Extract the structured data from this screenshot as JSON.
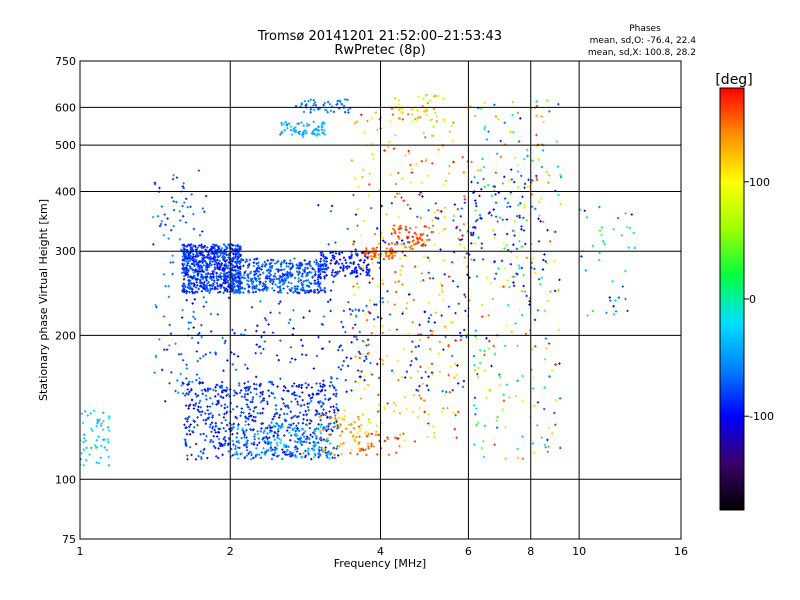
{
  "chart_data": {
    "type": "scatter",
    "title": "Tromsø 20141201 21:52:00–21:53:43",
    "subtitle": "RwPretec (8p)",
    "xlabel": "Frequency [MHz]",
    "ylabel": "Stationary phase Virtual Height [km]",
    "x_scale": "log",
    "y_scale": "log",
    "xlim": [
      1,
      16
    ],
    "ylim": [
      75,
      750
    ],
    "x_ticks": [
      1,
      2,
      4,
      6,
      8,
      10,
      16
    ],
    "y_ticks": [
      75,
      100,
      200,
      300,
      400,
      500,
      600,
      750
    ],
    "grid": true,
    "stats": {
      "heading": "Phases",
      "o_line": "mean, sd,O: -76.4, 22.4",
      "x_line": "mean, sd,X: 100.8, 28.2"
    },
    "colorbar": {
      "label": "[deg]",
      "range": [
        -180,
        180
      ],
      "ticks": [
        100,
        0,
        -100
      ],
      "colors": [
        "#000000",
        "#3a006a",
        "#0000ff",
        "#0080ff",
        "#00e0ff",
        "#00ff40",
        "#a0ff00",
        "#ffff00",
        "#ff9000",
        "#ff0000"
      ]
    },
    "clusters": [
      {
        "f": [
          1.6,
          2.1
        ],
        "h": [
          245,
          310
        ],
        "phase": [
          -110,
          -60
        ],
        "count": 700
      },
      {
        "f": [
          2.0,
          3.1
        ],
        "h": [
          245,
          290
        ],
        "phase": [
          -100,
          -50
        ],
        "count": 450
      },
      {
        "f": [
          3.0,
          3.8
        ],
        "h": [
          265,
          300
        ],
        "phase": [
          -110,
          -80
        ],
        "count": 130
      },
      {
        "f": [
          3.7,
          4.3
        ],
        "h": [
          288,
          305
        ],
        "phase": [
          130,
          180
        ],
        "count": 60
      },
      {
        "f": [
          4.2,
          5.1
        ],
        "h": [
          305,
          340
        ],
        "phase": [
          140,
          180
        ],
        "count": 60
      },
      {
        "f": [
          1.6,
          3.3
        ],
        "h": [
          110,
          160
        ],
        "phase": [
          -110,
          -60
        ],
        "count": 650
      },
      {
        "f": [
          2.0,
          3.2
        ],
        "h": [
          110,
          130
        ],
        "phase": [
          -70,
          -20
        ],
        "count": 150
      },
      {
        "f": [
          3.0,
          3.8
        ],
        "h": [
          112,
          140
        ],
        "phase": [
          100,
          160
        ],
        "count": 70
      },
      {
        "f": [
          3.5,
          4.5
        ],
        "h": [
          112,
          125
        ],
        "phase": [
          140,
          180
        ],
        "count": 30
      },
      {
        "f": [
          2.5,
          3.1
        ],
        "h": [
          520,
          560
        ],
        "phase": [
          -60,
          -20
        ],
        "count": 70
      },
      {
        "f": [
          2.7,
          3.5
        ],
        "h": [
          585,
          625
        ],
        "phase": [
          -90,
          -40
        ],
        "count": 50
      },
      {
        "f": [
          1.0,
          1.15
        ],
        "h": [
          105,
          140
        ],
        "phase": [
          -40,
          -10
        ],
        "count": 55
      },
      {
        "f": [
          1.4,
          1.8
        ],
        "h": [
          140,
          450
        ],
        "phase": [
          -100,
          -40
        ],
        "count": 120
      },
      {
        "f": [
          3.5,
          6.0
        ],
        "h": [
          120,
          600
        ],
        "phase": [
          60,
          180
        ],
        "count": 320
      },
      {
        "f": [
          3.0,
          6.0
        ],
        "h": [
          150,
          400
        ],
        "phase": [
          -110,
          -60
        ],
        "count": 150
      },
      {
        "f": [
          6.0,
          9.2
        ],
        "h": [
          110,
          620
        ],
        "phase": [
          -110,
          180
        ],
        "count": 280
      },
      {
        "f": [
          6.0,
          8.5
        ],
        "h": [
          250,
          450
        ],
        "phase": [
          -110,
          -70
        ],
        "count": 80
      },
      {
        "f": [
          4.2,
          5.5
        ],
        "h": [
          560,
          640
        ],
        "phase": [
          60,
          160
        ],
        "count": 50
      },
      {
        "f": [
          10.0,
          13.0
        ],
        "h": [
          220,
          400
        ],
        "phase": [
          -110,
          40
        ],
        "count": 40
      },
      {
        "f": [
          1.6,
          4.0
        ],
        "h": [
          160,
          240
        ],
        "phase": [
          -110,
          -60
        ],
        "count": 130
      }
    ]
  }
}
